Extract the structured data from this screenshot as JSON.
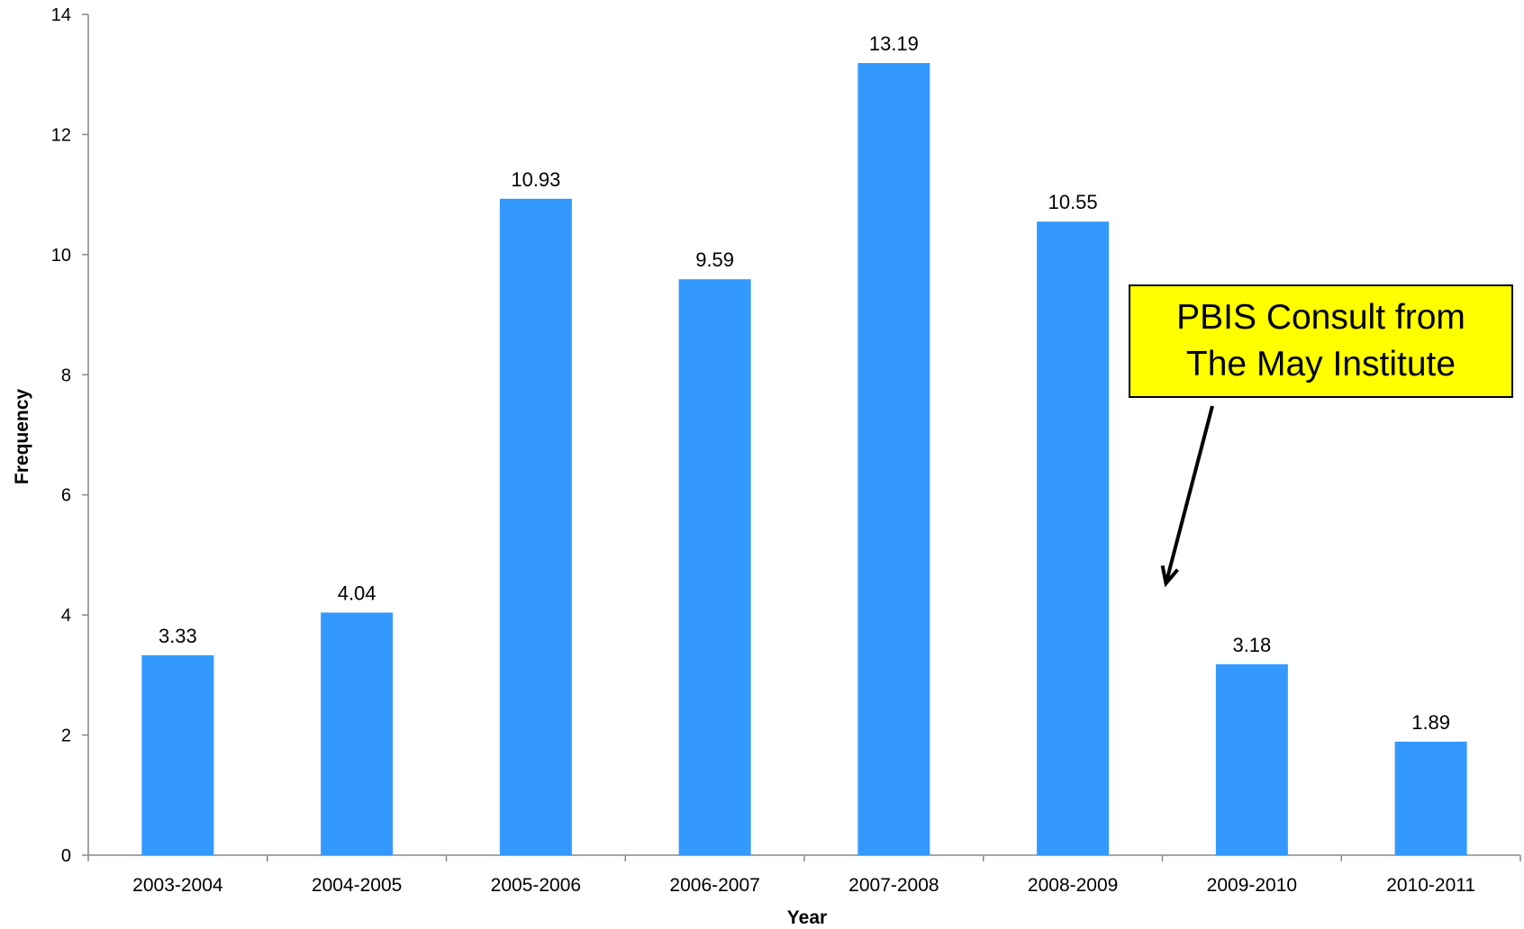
{
  "chart_data": {
    "type": "bar",
    "title": "",
    "xlabel": "Year",
    "ylabel": "Frequency",
    "categories": [
      "2003-2004",
      "2004-2005",
      "2005-2006",
      "2006-2007",
      "2007-2008",
      "2008-2009",
      "2009-2010",
      "2010-2011"
    ],
    "values": [
      3.33,
      4.04,
      10.93,
      9.59,
      13.19,
      10.55,
      3.18,
      1.89
    ],
    "value_labels": [
      "3.33",
      "4.04",
      "10.93",
      "9.59",
      "13.19",
      "10.55",
      "3.18",
      "1.89"
    ],
    "ylim": [
      0,
      14
    ],
    "yticks": [
      0,
      2,
      4,
      6,
      8,
      10,
      12,
      14
    ],
    "grid": false,
    "legend": "none",
    "bar_color": "#3399ff",
    "annotation": {
      "text": "PBIS Consult from\nThe May Institute",
      "background": "#ffff00",
      "arrow_target_category": "2009-2010"
    }
  }
}
